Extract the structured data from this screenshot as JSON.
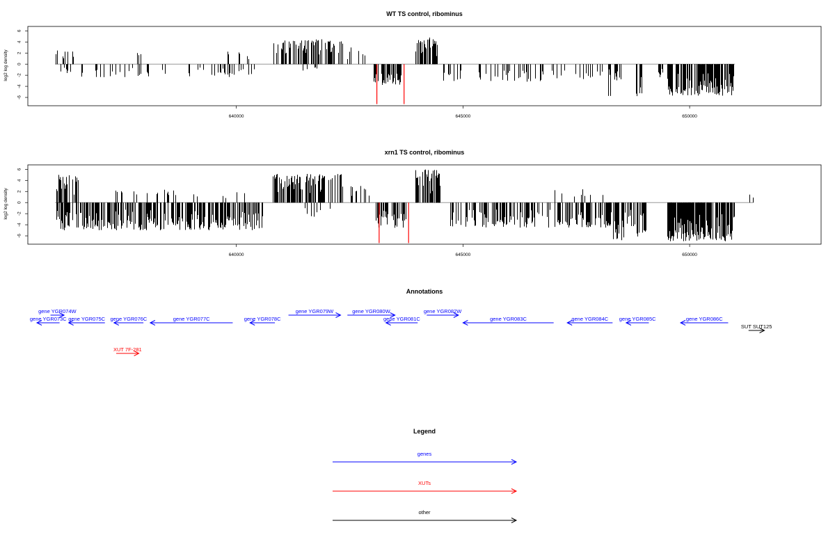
{
  "chart_data": [
    {
      "type": "bar",
      "title": "WT TS control, ribominus",
      "ylabel": "log2 log density",
      "xlim": [
        635400,
        652900
      ],
      "ylim": [
        -7.5,
        6.8
      ],
      "xticks": [
        640000,
        645000,
        650000
      ],
      "xtick_labels": [
        "640000",
        "645000",
        "650000"
      ],
      "yticks": [
        -6,
        -4,
        -2,
        0,
        2,
        4,
        6
      ],
      "ytick_labels": [
        "-6",
        "-4",
        "-2",
        "0",
        "2",
        "4",
        "6"
      ],
      "baseline_range": [
        636000,
        651000
      ],
      "segments": [
        {
          "start": 636000,
          "end": 636400,
          "strand": "+",
          "n": 12,
          "amp": 2.6,
          "seed": 1
        },
        {
          "start": 636050,
          "end": 636450,
          "strand": "-",
          "n": 8,
          "amp": 1.6,
          "seed": 2
        },
        {
          "start": 636550,
          "end": 638600,
          "strand": "-",
          "n": 24,
          "amp": 2.4,
          "seed": 3
        },
        {
          "start": 637800,
          "end": 637950,
          "strand": "+",
          "n": 3,
          "amp": 2.4,
          "seed": 4
        },
        {
          "start": 638800,
          "end": 639850,
          "strand": "-",
          "n": 16,
          "amp": 2.2,
          "seed": 5
        },
        {
          "start": 639800,
          "end": 640400,
          "strand": "+",
          "n": 6,
          "amp": 2.6,
          "seed": 6
        },
        {
          "start": 639800,
          "end": 640400,
          "strand": "-",
          "n": 12,
          "amp": 2.4,
          "seed": 7
        },
        {
          "start": 640800,
          "end": 642400,
          "strand": "+",
          "n": 85,
          "amp": 4.5,
          "seed": 8
        },
        {
          "start": 641300,
          "end": 642000,
          "strand": "-",
          "n": 5,
          "amp": 1.4,
          "seed": 9
        },
        {
          "start": 642200,
          "end": 642900,
          "strand": "+",
          "n": 7,
          "amp": 3.0,
          "seed": 10
        },
        {
          "start": 643000,
          "end": 643700,
          "strand": "-",
          "n": 40,
          "amp": 3.8,
          "seed": 11
        },
        {
          "start": 643950,
          "end": 644450,
          "strand": "+",
          "n": 45,
          "amp": 4.8,
          "seed": 12
        },
        {
          "start": 644550,
          "end": 647300,
          "strand": "-",
          "n": 45,
          "amp": 3.2,
          "seed": 13
        },
        {
          "start": 647400,
          "end": 648500,
          "strand": "-",
          "n": 18,
          "amp": 2.8,
          "seed": 14
        },
        {
          "start": 648200,
          "end": 648400,
          "strand": "-",
          "n": 10,
          "amp": 5.9,
          "seed": 15
        },
        {
          "start": 648800,
          "end": 648950,
          "strand": "-",
          "n": 10,
          "amp": 5.9,
          "seed": 16
        },
        {
          "start": 649300,
          "end": 649400,
          "strand": "-",
          "n": 8,
          "amp": 2.5,
          "seed": 17
        },
        {
          "start": 649500,
          "end": 651000,
          "strand": "-",
          "n": 150,
          "amp": 5.7,
          "seed": 18
        }
      ],
      "red_lines": [
        {
          "x": 643100,
          "y": -7.2
        },
        {
          "x": 643700,
          "y": -7.2
        }
      ]
    },
    {
      "type": "bar",
      "title": "xrn1 TS control, ribominus",
      "ylabel": "log2 log density",
      "xlim": [
        635400,
        652900
      ],
      "ylim": [
        -7.5,
        6.8
      ],
      "xticks": [
        640000,
        645000,
        650000
      ],
      "xtick_labels": [
        "640000",
        "645000",
        "650000"
      ],
      "yticks": [
        -6,
        -4,
        -2,
        0,
        2,
        4,
        6
      ],
      "ytick_labels": [
        "-6",
        "-4",
        "-2",
        "0",
        "2",
        "4",
        "6"
      ],
      "baseline_range": [
        636000,
        651400
      ],
      "segments": [
        {
          "start": 636000,
          "end": 636500,
          "strand": "+",
          "n": 30,
          "amp": 5.0,
          "seed": 21
        },
        {
          "start": 636000,
          "end": 640600,
          "strand": "-",
          "n": 300,
          "amp": 5.0,
          "seed": 22
        },
        {
          "start": 637300,
          "end": 638700,
          "strand": "+",
          "n": 16,
          "amp": 2.4,
          "seed": 23
        },
        {
          "start": 639000,
          "end": 640300,
          "strand": "+",
          "n": 6,
          "amp": 2.4,
          "seed": 24
        },
        {
          "start": 640800,
          "end": 642350,
          "strand": "+",
          "n": 95,
          "amp": 5.2,
          "seed": 25
        },
        {
          "start": 641500,
          "end": 642300,
          "strand": "-",
          "n": 8,
          "amp": 2.8,
          "seed": 26
        },
        {
          "start": 642500,
          "end": 642950,
          "strand": "+",
          "n": 14,
          "amp": 3.0,
          "seed": 27
        },
        {
          "start": 643050,
          "end": 643750,
          "strand": "-",
          "n": 45,
          "amp": 4.6,
          "seed": 28
        },
        {
          "start": 643950,
          "end": 644500,
          "strand": "+",
          "n": 55,
          "amp": 6.0,
          "seed": 29
        },
        {
          "start": 644700,
          "end": 648800,
          "strand": "-",
          "n": 180,
          "amp": 4.6,
          "seed": 30
        },
        {
          "start": 647000,
          "end": 648100,
          "strand": "+",
          "n": 8,
          "amp": 2.6,
          "seed": 31
        },
        {
          "start": 648200,
          "end": 648550,
          "strand": "-",
          "n": 25,
          "amp": 6.8,
          "seed": 32
        },
        {
          "start": 648800,
          "end": 649050,
          "strand": "-",
          "n": 20,
          "amp": 6.2,
          "seed": 33
        },
        {
          "start": 649500,
          "end": 651000,
          "strand": "-",
          "n": 180,
          "amp": 7.0,
          "seed": 34
        },
        {
          "start": 651300,
          "end": 651400,
          "strand": "+",
          "n": 2,
          "amp": 1.5,
          "seed": 35
        }
      ],
      "red_lines": [
        {
          "x": 643150,
          "y": -7.3
        },
        {
          "x": 643800,
          "y": -7.3
        }
      ]
    },
    {
      "type": "annotation-track",
      "title": "Annotations",
      "xlim": [
        635400,
        652900
      ],
      "features": [
        {
          "label": "gene YGR074W",
          "start": 635900,
          "end": 636200,
          "strand": "+",
          "color": "#0000ff",
          "row": 1
        },
        {
          "label": "gene YGR073C",
          "start": 635600,
          "end": 636100,
          "strand": "-",
          "color": "#0000ff",
          "row": 0
        },
        {
          "label": "gene YGR075C",
          "start": 636300,
          "end": 637100,
          "strand": "-",
          "color": "#0000ff",
          "row": 0
        },
        {
          "label": "gene YGR076C",
          "start": 637300,
          "end": 637950,
          "strand": "-",
          "color": "#0000ff",
          "row": 0
        },
        {
          "label": "gene YGR077C",
          "start": 638100,
          "end": 639920,
          "strand": "-",
          "color": "#0000ff",
          "row": 0
        },
        {
          "label": "gene YGR078C",
          "start": 640300,
          "end": 640850,
          "strand": "-",
          "color": "#0000ff",
          "row": 0
        },
        {
          "label": "gene YGR079W",
          "start": 641150,
          "end": 642300,
          "strand": "+",
          "color": "#0000ff",
          "row": 1
        },
        {
          "label": "gene YGR080W",
          "start": 642450,
          "end": 643500,
          "strand": "+",
          "color": "#0000ff",
          "row": 1
        },
        {
          "label": "gene YGR081C",
          "start": 643300,
          "end": 644000,
          "strand": "-",
          "color": "#0000ff",
          "row": 0
        },
        {
          "label": "gene YGR082W",
          "start": 644200,
          "end": 644900,
          "strand": "+",
          "color": "#0000ff",
          "row": 1
        },
        {
          "label": "gene YGR083C",
          "start": 645000,
          "end": 647000,
          "strand": "-",
          "color": "#0000ff",
          "row": 0
        },
        {
          "label": "gene YGR084C",
          "start": 647300,
          "end": 648300,
          "strand": "-",
          "color": "#0000ff",
          "row": 0
        },
        {
          "label": "gene YGR085C",
          "start": 648600,
          "end": 649100,
          "strand": "-",
          "color": "#0000ff",
          "row": 0
        },
        {
          "label": "gene YGR086C",
          "start": 649800,
          "end": 650850,
          "strand": "-",
          "color": "#0000ff",
          "row": 0
        },
        {
          "label": "SUT SUT125",
          "start": 651300,
          "end": 651650,
          "strand": "+",
          "color": "#000000",
          "row": -1
        },
        {
          "label": "XUT 7F-281",
          "start": 637350,
          "end": 637850,
          "strand": "+",
          "color": "#ff0000",
          "row": -4
        }
      ]
    },
    {
      "type": "legend",
      "title": "Legend",
      "entries": [
        {
          "label": "genes",
          "color": "#0000ff"
        },
        {
          "label": "XUTs",
          "color": "#ff0000"
        },
        {
          "label": "other",
          "color": "#000000"
        }
      ]
    }
  ]
}
